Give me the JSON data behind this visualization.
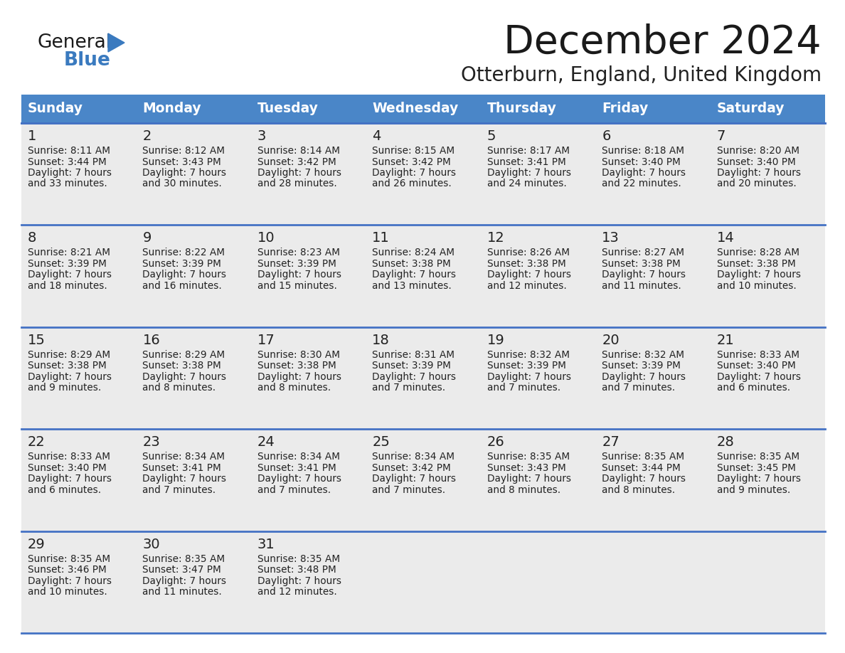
{
  "title": "December 2024",
  "subtitle": "Otterburn, England, United Kingdom",
  "days_of_week": [
    "Sunday",
    "Monday",
    "Tuesday",
    "Wednesday",
    "Thursday",
    "Friday",
    "Saturday"
  ],
  "header_bg": "#4a86c8",
  "header_text": "#ffffff",
  "cell_bg": "#ebebeb",
  "cell_border": "#4472c4",
  "day_num_color": "#222222",
  "info_text_color": "#222222",
  "title_color": "#1a1a1a",
  "subtitle_color": "#222222",
  "logo_general_color": "#1a1a1a",
  "logo_blue_color": "#3a7abf",
  "weeks": [
    [
      {
        "day": 1,
        "sunrise": "8:11 AM",
        "sunset": "3:44 PM",
        "daylight": "7 hours and 33 minutes"
      },
      {
        "day": 2,
        "sunrise": "8:12 AM",
        "sunset": "3:43 PM",
        "daylight": "7 hours and 30 minutes"
      },
      {
        "day": 3,
        "sunrise": "8:14 AM",
        "sunset": "3:42 PM",
        "daylight": "7 hours and 28 minutes"
      },
      {
        "day": 4,
        "sunrise": "8:15 AM",
        "sunset": "3:42 PM",
        "daylight": "7 hours and 26 minutes"
      },
      {
        "day": 5,
        "sunrise": "8:17 AM",
        "sunset": "3:41 PM",
        "daylight": "7 hours and 24 minutes"
      },
      {
        "day": 6,
        "sunrise": "8:18 AM",
        "sunset": "3:40 PM",
        "daylight": "7 hours and 22 minutes"
      },
      {
        "day": 7,
        "sunrise": "8:20 AM",
        "sunset": "3:40 PM",
        "daylight": "7 hours and 20 minutes"
      }
    ],
    [
      {
        "day": 8,
        "sunrise": "8:21 AM",
        "sunset": "3:39 PM",
        "daylight": "7 hours and 18 minutes"
      },
      {
        "day": 9,
        "sunrise": "8:22 AM",
        "sunset": "3:39 PM",
        "daylight": "7 hours and 16 minutes"
      },
      {
        "day": 10,
        "sunrise": "8:23 AM",
        "sunset": "3:39 PM",
        "daylight": "7 hours and 15 minutes"
      },
      {
        "day": 11,
        "sunrise": "8:24 AM",
        "sunset": "3:38 PM",
        "daylight": "7 hours and 13 minutes"
      },
      {
        "day": 12,
        "sunrise": "8:26 AM",
        "sunset": "3:38 PM",
        "daylight": "7 hours and 12 minutes"
      },
      {
        "day": 13,
        "sunrise": "8:27 AM",
        "sunset": "3:38 PM",
        "daylight": "7 hours and 11 minutes"
      },
      {
        "day": 14,
        "sunrise": "8:28 AM",
        "sunset": "3:38 PM",
        "daylight": "7 hours and 10 minutes"
      }
    ],
    [
      {
        "day": 15,
        "sunrise": "8:29 AM",
        "sunset": "3:38 PM",
        "daylight": "7 hours and 9 minutes"
      },
      {
        "day": 16,
        "sunrise": "8:29 AM",
        "sunset": "3:38 PM",
        "daylight": "7 hours and 8 minutes"
      },
      {
        "day": 17,
        "sunrise": "8:30 AM",
        "sunset": "3:38 PM",
        "daylight": "7 hours and 8 minutes"
      },
      {
        "day": 18,
        "sunrise": "8:31 AM",
        "sunset": "3:39 PM",
        "daylight": "7 hours and 7 minutes"
      },
      {
        "day": 19,
        "sunrise": "8:32 AM",
        "sunset": "3:39 PM",
        "daylight": "7 hours and 7 minutes"
      },
      {
        "day": 20,
        "sunrise": "8:32 AM",
        "sunset": "3:39 PM",
        "daylight": "7 hours and 7 minutes"
      },
      {
        "day": 21,
        "sunrise": "8:33 AM",
        "sunset": "3:40 PM",
        "daylight": "7 hours and 6 minutes"
      }
    ],
    [
      {
        "day": 22,
        "sunrise": "8:33 AM",
        "sunset": "3:40 PM",
        "daylight": "7 hours and 6 minutes"
      },
      {
        "day": 23,
        "sunrise": "8:34 AM",
        "sunset": "3:41 PM",
        "daylight": "7 hours and 7 minutes"
      },
      {
        "day": 24,
        "sunrise": "8:34 AM",
        "sunset": "3:41 PM",
        "daylight": "7 hours and 7 minutes"
      },
      {
        "day": 25,
        "sunrise": "8:34 AM",
        "sunset": "3:42 PM",
        "daylight": "7 hours and 7 minutes"
      },
      {
        "day": 26,
        "sunrise": "8:35 AM",
        "sunset": "3:43 PM",
        "daylight": "7 hours and 8 minutes"
      },
      {
        "day": 27,
        "sunrise": "8:35 AM",
        "sunset": "3:44 PM",
        "daylight": "7 hours and 8 minutes"
      },
      {
        "day": 28,
        "sunrise": "8:35 AM",
        "sunset": "3:45 PM",
        "daylight": "7 hours and 9 minutes"
      }
    ],
    [
      {
        "day": 29,
        "sunrise": "8:35 AM",
        "sunset": "3:46 PM",
        "daylight": "7 hours and 10 minutes"
      },
      {
        "day": 30,
        "sunrise": "8:35 AM",
        "sunset": "3:47 PM",
        "daylight": "7 hours and 11 minutes"
      },
      {
        "day": 31,
        "sunrise": "8:35 AM",
        "sunset": "3:48 PM",
        "daylight": "7 hours and 12 minutes"
      },
      null,
      null,
      null,
      null
    ]
  ]
}
